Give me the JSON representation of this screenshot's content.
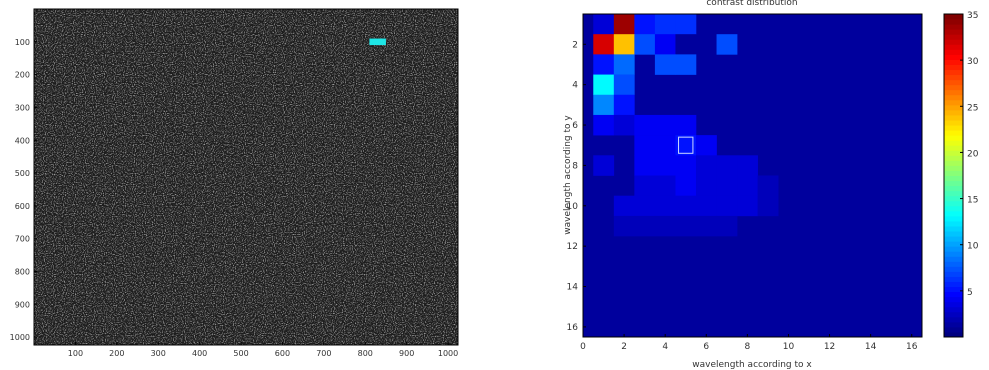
{
  "chart_data": [
    {
      "type": "heatmap",
      "title": "",
      "xlabel": "",
      "ylabel": "",
      "xlim": [
        0,
        1024
      ],
      "ylim": [
        0,
        1024
      ],
      "x_ticks": [
        "100",
        "200",
        "300",
        "400",
        "500",
        "600",
        "700",
        "800",
        "900",
        "1000"
      ],
      "y_ticks": [
        "100",
        "200",
        "300",
        "400",
        "500",
        "600",
        "700",
        "800",
        "900",
        "1000"
      ],
      "colormap": "gray",
      "marker": {
        "x_range": [
          810,
          850
        ],
        "y_range": [
          90,
          110
        ],
        "color": "#1ee6e6"
      }
    },
    {
      "type": "heatmap",
      "title": "contrast distribution",
      "xlabel": "wavelength according to x",
      "ylabel": "wavelength according to y",
      "xlim": [
        0,
        16.5
      ],
      "ylim": [
        0.5,
        16.5
      ],
      "x_ticks": [
        "0",
        "2",
        "4",
        "6",
        "8",
        "10",
        "12",
        "14",
        "16"
      ],
      "y_ticks": [
        "2",
        "4",
        "6",
        "8",
        "10",
        "12",
        "14",
        "16"
      ],
      "colorbar_ticks": [
        "5",
        "10",
        "15",
        "20",
        "25",
        "30",
        "35"
      ],
      "colorbar_range": [
        0,
        35
      ],
      "colormap": "jet",
      "highlight_cell": {
        "x": 5,
        "y": 7
      },
      "cells": [
        {
          "x": 1,
          "y": 1,
          "v": 3
        },
        {
          "x": 2,
          "y": 1,
          "v": 34
        },
        {
          "x": 3,
          "y": 1,
          "v": 5
        },
        {
          "x": 4,
          "y": 1,
          "v": 6
        },
        {
          "x": 5,
          "y": 1,
          "v": 6
        },
        {
          "x": 1,
          "y": 2,
          "v": 32
        },
        {
          "x": 2,
          "y": 2,
          "v": 24
        },
        {
          "x": 3,
          "y": 2,
          "v": 7
        },
        {
          "x": 4,
          "y": 2,
          "v": 4
        },
        {
          "x": 5,
          "y": 2,
          "v": 1
        },
        {
          "x": 7,
          "y": 2,
          "v": 7
        },
        {
          "x": 1,
          "y": 3,
          "v": 5
        },
        {
          "x": 2,
          "y": 3,
          "v": 8
        },
        {
          "x": 4,
          "y": 3,
          "v": 7
        },
        {
          "x": 5,
          "y": 3,
          "v": 7
        },
        {
          "x": 1,
          "y": 4,
          "v": 13
        },
        {
          "x": 2,
          "y": 4,
          "v": 7
        },
        {
          "x": 1,
          "y": 5,
          "v": 9
        },
        {
          "x": 2,
          "y": 5,
          "v": 5
        },
        {
          "x": 1,
          "y": 6,
          "v": 4
        },
        {
          "x": 2,
          "y": 6,
          "v": 3
        },
        {
          "x": 3,
          "y": 6,
          "v": 4
        },
        {
          "x": 4,
          "y": 6,
          "v": 4
        },
        {
          "x": 5,
          "y": 6,
          "v": 4
        },
        {
          "x": 3,
          "y": 7,
          "v": 4
        },
        {
          "x": 4,
          "y": 7,
          "v": 4
        },
        {
          "x": 5,
          "y": 7,
          "v": 5
        },
        {
          "x": 6,
          "y": 7,
          "v": 4
        },
        {
          "x": 1,
          "y": 8,
          "v": 3
        },
        {
          "x": 3,
          "y": 8,
          "v": 4
        },
        {
          "x": 4,
          "y": 8,
          "v": 4
        },
        {
          "x": 5,
          "y": 8,
          "v": 4
        },
        {
          "x": 6,
          "y": 8,
          "v": 3
        },
        {
          "x": 7,
          "y": 8,
          "v": 3
        },
        {
          "x": 8,
          "y": 8,
          "v": 3
        },
        {
          "x": 3,
          "y": 9,
          "v": 3
        },
        {
          "x": 4,
          "y": 9,
          "v": 3
        },
        {
          "x": 5,
          "y": 9,
          "v": 4
        },
        {
          "x": 6,
          "y": 9,
          "v": 3
        },
        {
          "x": 7,
          "y": 9,
          "v": 3
        },
        {
          "x": 8,
          "y": 9,
          "v": 3
        },
        {
          "x": 9,
          "y": 9,
          "v": 2
        },
        {
          "x": 2,
          "y": 10,
          "v": 3
        },
        {
          "x": 3,
          "y": 10,
          "v": 3
        },
        {
          "x": 4,
          "y": 10,
          "v": 3
        },
        {
          "x": 5,
          "y": 10,
          "v": 3
        },
        {
          "x": 6,
          "y": 10,
          "v": 3
        },
        {
          "x": 7,
          "y": 10,
          "v": 3
        },
        {
          "x": 8,
          "y": 10,
          "v": 3
        },
        {
          "x": 9,
          "y": 10,
          "v": 2
        },
        {
          "x": 2,
          "y": 11,
          "v": 2
        },
        {
          "x": 3,
          "y": 11,
          "v": 2
        },
        {
          "x": 4,
          "y": 11,
          "v": 2
        },
        {
          "x": 5,
          "y": 11,
          "v": 2
        },
        {
          "x": 6,
          "y": 11,
          "v": 2
        },
        {
          "x": 7,
          "y": 11,
          "v": 2
        }
      ]
    }
  ]
}
